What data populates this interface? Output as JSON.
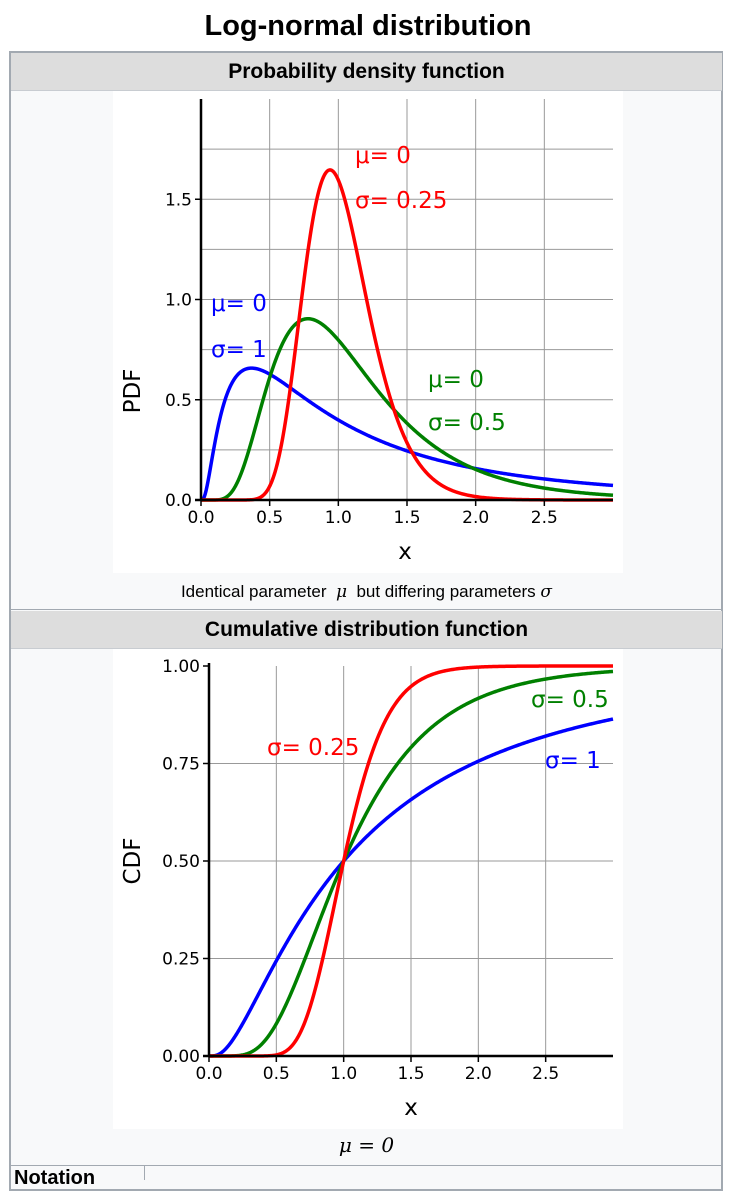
{
  "title": "Log-normal distribution",
  "pdf_section": {
    "header": "Probability density function",
    "caption_prefix": "Identical parameter",
    "caption_param1": "μ",
    "caption_middle": "but differing parameters",
    "caption_param2": "σ"
  },
  "cdf_section": {
    "header": "Cumulative distribution function",
    "caption": "μ = 0"
  },
  "table_row": {
    "label": "Notation"
  },
  "colors": {
    "red": "#ff0000",
    "green": "#008000",
    "blue": "#0000ff",
    "header_bg": "#dddddd",
    "border": "#a2a9b1"
  },
  "chart_data": [
    {
      "type": "line",
      "xlabel": "x",
      "ylabel": "PDF",
      "xlim": [
        0,
        3
      ],
      "ylim": [
        0,
        2
      ],
      "xticks": [
        "0.0",
        "0.5",
        "1.0",
        "1.5",
        "2.0",
        "2.5"
      ],
      "yticks": [
        "0.0",
        "0.5",
        "1.0",
        "1.5"
      ],
      "grid": true,
      "series": [
        {
          "sigma": 1,
          "mu": 0,
          "color": "#0000ff",
          "label_mu": "μ= 0",
          "label_sigma": "σ= 1"
        },
        {
          "sigma": 0.5,
          "mu": 0,
          "color": "#008000",
          "label_mu": "μ= 0",
          "label_sigma": "σ= 0.5"
        },
        {
          "sigma": 0.25,
          "mu": 0,
          "color": "#ff0000",
          "label_mu": "μ= 0",
          "label_sigma": "σ= 0.25"
        }
      ]
    },
    {
      "type": "line",
      "xlabel": "x",
      "ylabel": "CDF",
      "xlim": [
        0,
        3
      ],
      "ylim": [
        0,
        1
      ],
      "xticks": [
        "0.0",
        "0.5",
        "1.0",
        "1.5",
        "2.0",
        "2.5"
      ],
      "yticks": [
        "0.00",
        "0.25",
        "0.50",
        "0.75",
        "1.00"
      ],
      "grid": true,
      "series": [
        {
          "sigma": 1,
          "mu": 0,
          "color": "#0000ff",
          "label_sigma": "σ= 1"
        },
        {
          "sigma": 0.5,
          "mu": 0,
          "color": "#008000",
          "label_sigma": "σ= 0.5"
        },
        {
          "sigma": 0.25,
          "mu": 0,
          "color": "#ff0000",
          "label_sigma": "σ= 0.25"
        }
      ]
    }
  ]
}
